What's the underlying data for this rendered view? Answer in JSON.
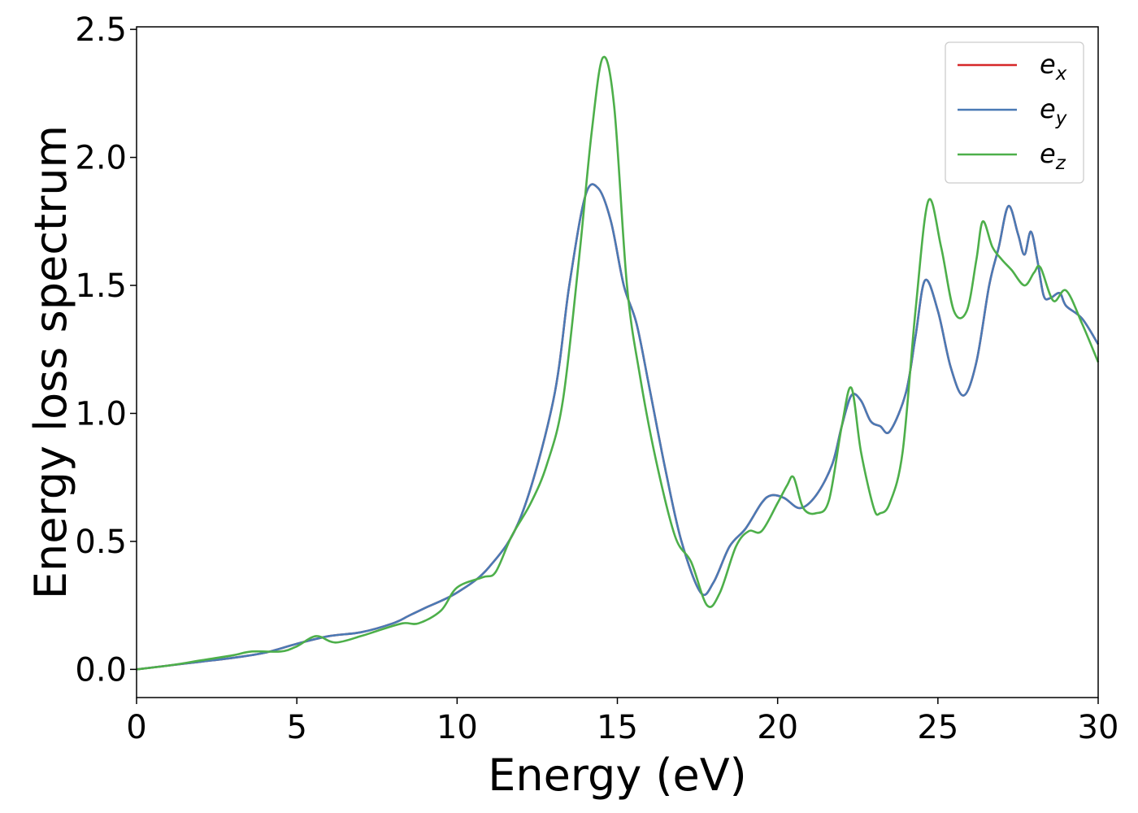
{
  "chart_data": {
    "type": "line",
    "title": "",
    "xlabel": "Energy (eV)",
    "ylabel": "Energy loss spectrum",
    "xlim": [
      0,
      30
    ],
    "ylim": [
      -0.11,
      2.51
    ],
    "xticks": [
      0,
      5,
      10,
      15,
      20,
      25,
      30
    ],
    "xtick_labels": [
      "0",
      "5",
      "10",
      "15",
      "20",
      "25",
      "30"
    ],
    "yticks": [
      0.0,
      0.5,
      1.0,
      1.5,
      2.0,
      2.5
    ],
    "ytick_labels": [
      "0.0",
      "0.5",
      "1.0",
      "1.5",
      "2.0",
      "2.5"
    ],
    "grid": false,
    "legend": {
      "placement": "top-right"
    },
    "series": [
      {
        "name": "e_x",
        "legend_base": "e",
        "legend_sub": "x",
        "color": "#d62728",
        "x": [
          0,
          1,
          2,
          3,
          4,
          5,
          6,
          7,
          8,
          8.5,
          9,
          10,
          11,
          12,
          13,
          13.5,
          14,
          14.4,
          14.8,
          15.2,
          15.6,
          16,
          16.5,
          17,
          17.6,
          18,
          18.5,
          19,
          19.5,
          19.8,
          20.2,
          20.7,
          21.2,
          21.7,
          22,
          22.3,
          22.6,
          22.9,
          23.2,
          23.5,
          24,
          24.3,
          24.6,
          25,
          25.4,
          25.8,
          26.2,
          26.6,
          26.9,
          27.2,
          27.5,
          27.7,
          27.9,
          28.1,
          28.3,
          28.5,
          28.8,
          29,
          29.5,
          30
        ],
        "y": [
          0.0,
          0.015,
          0.03,
          0.045,
          0.065,
          0.1,
          0.13,
          0.145,
          0.18,
          0.21,
          0.24,
          0.3,
          0.4,
          0.6,
          1.05,
          1.5,
          1.85,
          1.88,
          1.75,
          1.5,
          1.35,
          1.1,
          0.78,
          0.5,
          0.3,
          0.34,
          0.48,
          0.55,
          0.65,
          0.68,
          0.67,
          0.63,
          0.68,
          0.8,
          0.95,
          1.07,
          1.05,
          0.97,
          0.95,
          0.93,
          1.08,
          1.3,
          1.52,
          1.4,
          1.18,
          1.07,
          1.2,
          1.5,
          1.65,
          1.81,
          1.7,
          1.62,
          1.71,
          1.6,
          1.46,
          1.45,
          1.47,
          1.42,
          1.37,
          1.27
        ]
      },
      {
        "name": "e_y",
        "legend_base": "e",
        "legend_sub": "y",
        "color": "#4a7ab5",
        "x": [
          0,
          1,
          2,
          3,
          4,
          5,
          6,
          7,
          8,
          8.5,
          9,
          10,
          11,
          12,
          13,
          13.5,
          14,
          14.4,
          14.8,
          15.2,
          15.6,
          16,
          16.5,
          17,
          17.6,
          18,
          18.5,
          19,
          19.5,
          19.8,
          20.2,
          20.7,
          21.2,
          21.7,
          22,
          22.3,
          22.6,
          22.9,
          23.2,
          23.5,
          24,
          24.3,
          24.6,
          25,
          25.4,
          25.8,
          26.2,
          26.6,
          26.9,
          27.2,
          27.5,
          27.7,
          27.9,
          28.1,
          28.3,
          28.5,
          28.8,
          29,
          29.5,
          30
        ],
        "y": [
          0.0,
          0.015,
          0.03,
          0.045,
          0.065,
          0.1,
          0.13,
          0.145,
          0.18,
          0.21,
          0.24,
          0.3,
          0.4,
          0.6,
          1.05,
          1.5,
          1.85,
          1.88,
          1.75,
          1.5,
          1.35,
          1.1,
          0.78,
          0.5,
          0.3,
          0.34,
          0.48,
          0.55,
          0.65,
          0.68,
          0.67,
          0.63,
          0.68,
          0.8,
          0.95,
          1.07,
          1.05,
          0.97,
          0.95,
          0.93,
          1.08,
          1.3,
          1.52,
          1.4,
          1.18,
          1.07,
          1.2,
          1.5,
          1.65,
          1.81,
          1.7,
          1.62,
          1.71,
          1.6,
          1.46,
          1.45,
          1.47,
          1.42,
          1.37,
          1.27
        ]
      },
      {
        "name": "e_z",
        "legend_base": "e",
        "legend_sub": "z",
        "color": "#4daf4a",
        "x": [
          0,
          1,
          2,
          3,
          3.6,
          4.5,
          5,
          5.6,
          6.2,
          7,
          7.5,
          8.3,
          8.8,
          9.5,
          10,
          10.8,
          11.2,
          11.7,
          12.3,
          12.8,
          13.3,
          13.8,
          14.2,
          14.55,
          14.9,
          15.3,
          15.7,
          16.2,
          16.8,
          17.3,
          17.8,
          18.2,
          18.7,
          19.1,
          19.5,
          20,
          20.3,
          20.5,
          20.8,
          21.2,
          21.6,
          22,
          22.3,
          22.6,
          23,
          23.2,
          23.5,
          23.9,
          24.3,
          24.7,
          25.1,
          25.5,
          25.9,
          26.2,
          26.4,
          26.7,
          27,
          27.3,
          27.7,
          28,
          28.2,
          28.6,
          29,
          29.5,
          30
        ],
        "y": [
          0.0,
          0.015,
          0.035,
          0.055,
          0.07,
          0.07,
          0.09,
          0.13,
          0.105,
          0.13,
          0.15,
          0.18,
          0.18,
          0.23,
          0.32,
          0.36,
          0.38,
          0.52,
          0.65,
          0.8,
          1.05,
          1.6,
          2.1,
          2.39,
          2.2,
          1.5,
          1.15,
          0.82,
          0.52,
          0.42,
          0.25,
          0.3,
          0.48,
          0.54,
          0.54,
          0.65,
          0.72,
          0.75,
          0.63,
          0.61,
          0.66,
          0.95,
          1.1,
          0.85,
          0.63,
          0.61,
          0.65,
          0.85,
          1.4,
          1.83,
          1.65,
          1.4,
          1.4,
          1.6,
          1.75,
          1.65,
          1.6,
          1.56,
          1.5,
          1.55,
          1.57,
          1.44,
          1.48,
          1.35,
          1.2
        ]
      }
    ]
  }
}
